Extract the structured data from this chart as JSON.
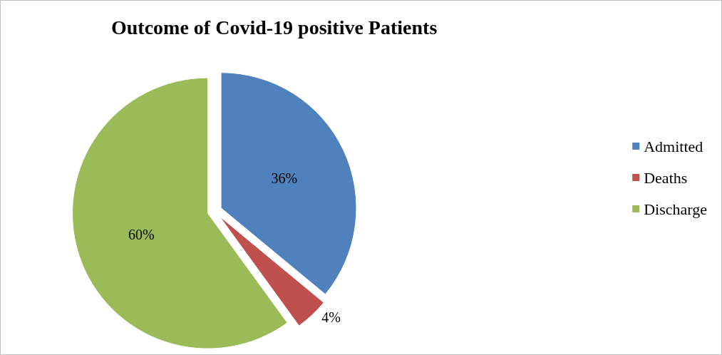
{
  "chart_data": {
    "type": "pie",
    "title": "Outcome of Covid-19 positive Patients",
    "categories": [
      "Admitted",
      "Deaths",
      "Discharge"
    ],
    "values": [
      36,
      4,
      60
    ],
    "colors": [
      "#4f81bd",
      "#c0504d",
      "#9bbb59"
    ],
    "value_labels": [
      "36%",
      "4%",
      "60%"
    ],
    "legend": "right"
  }
}
